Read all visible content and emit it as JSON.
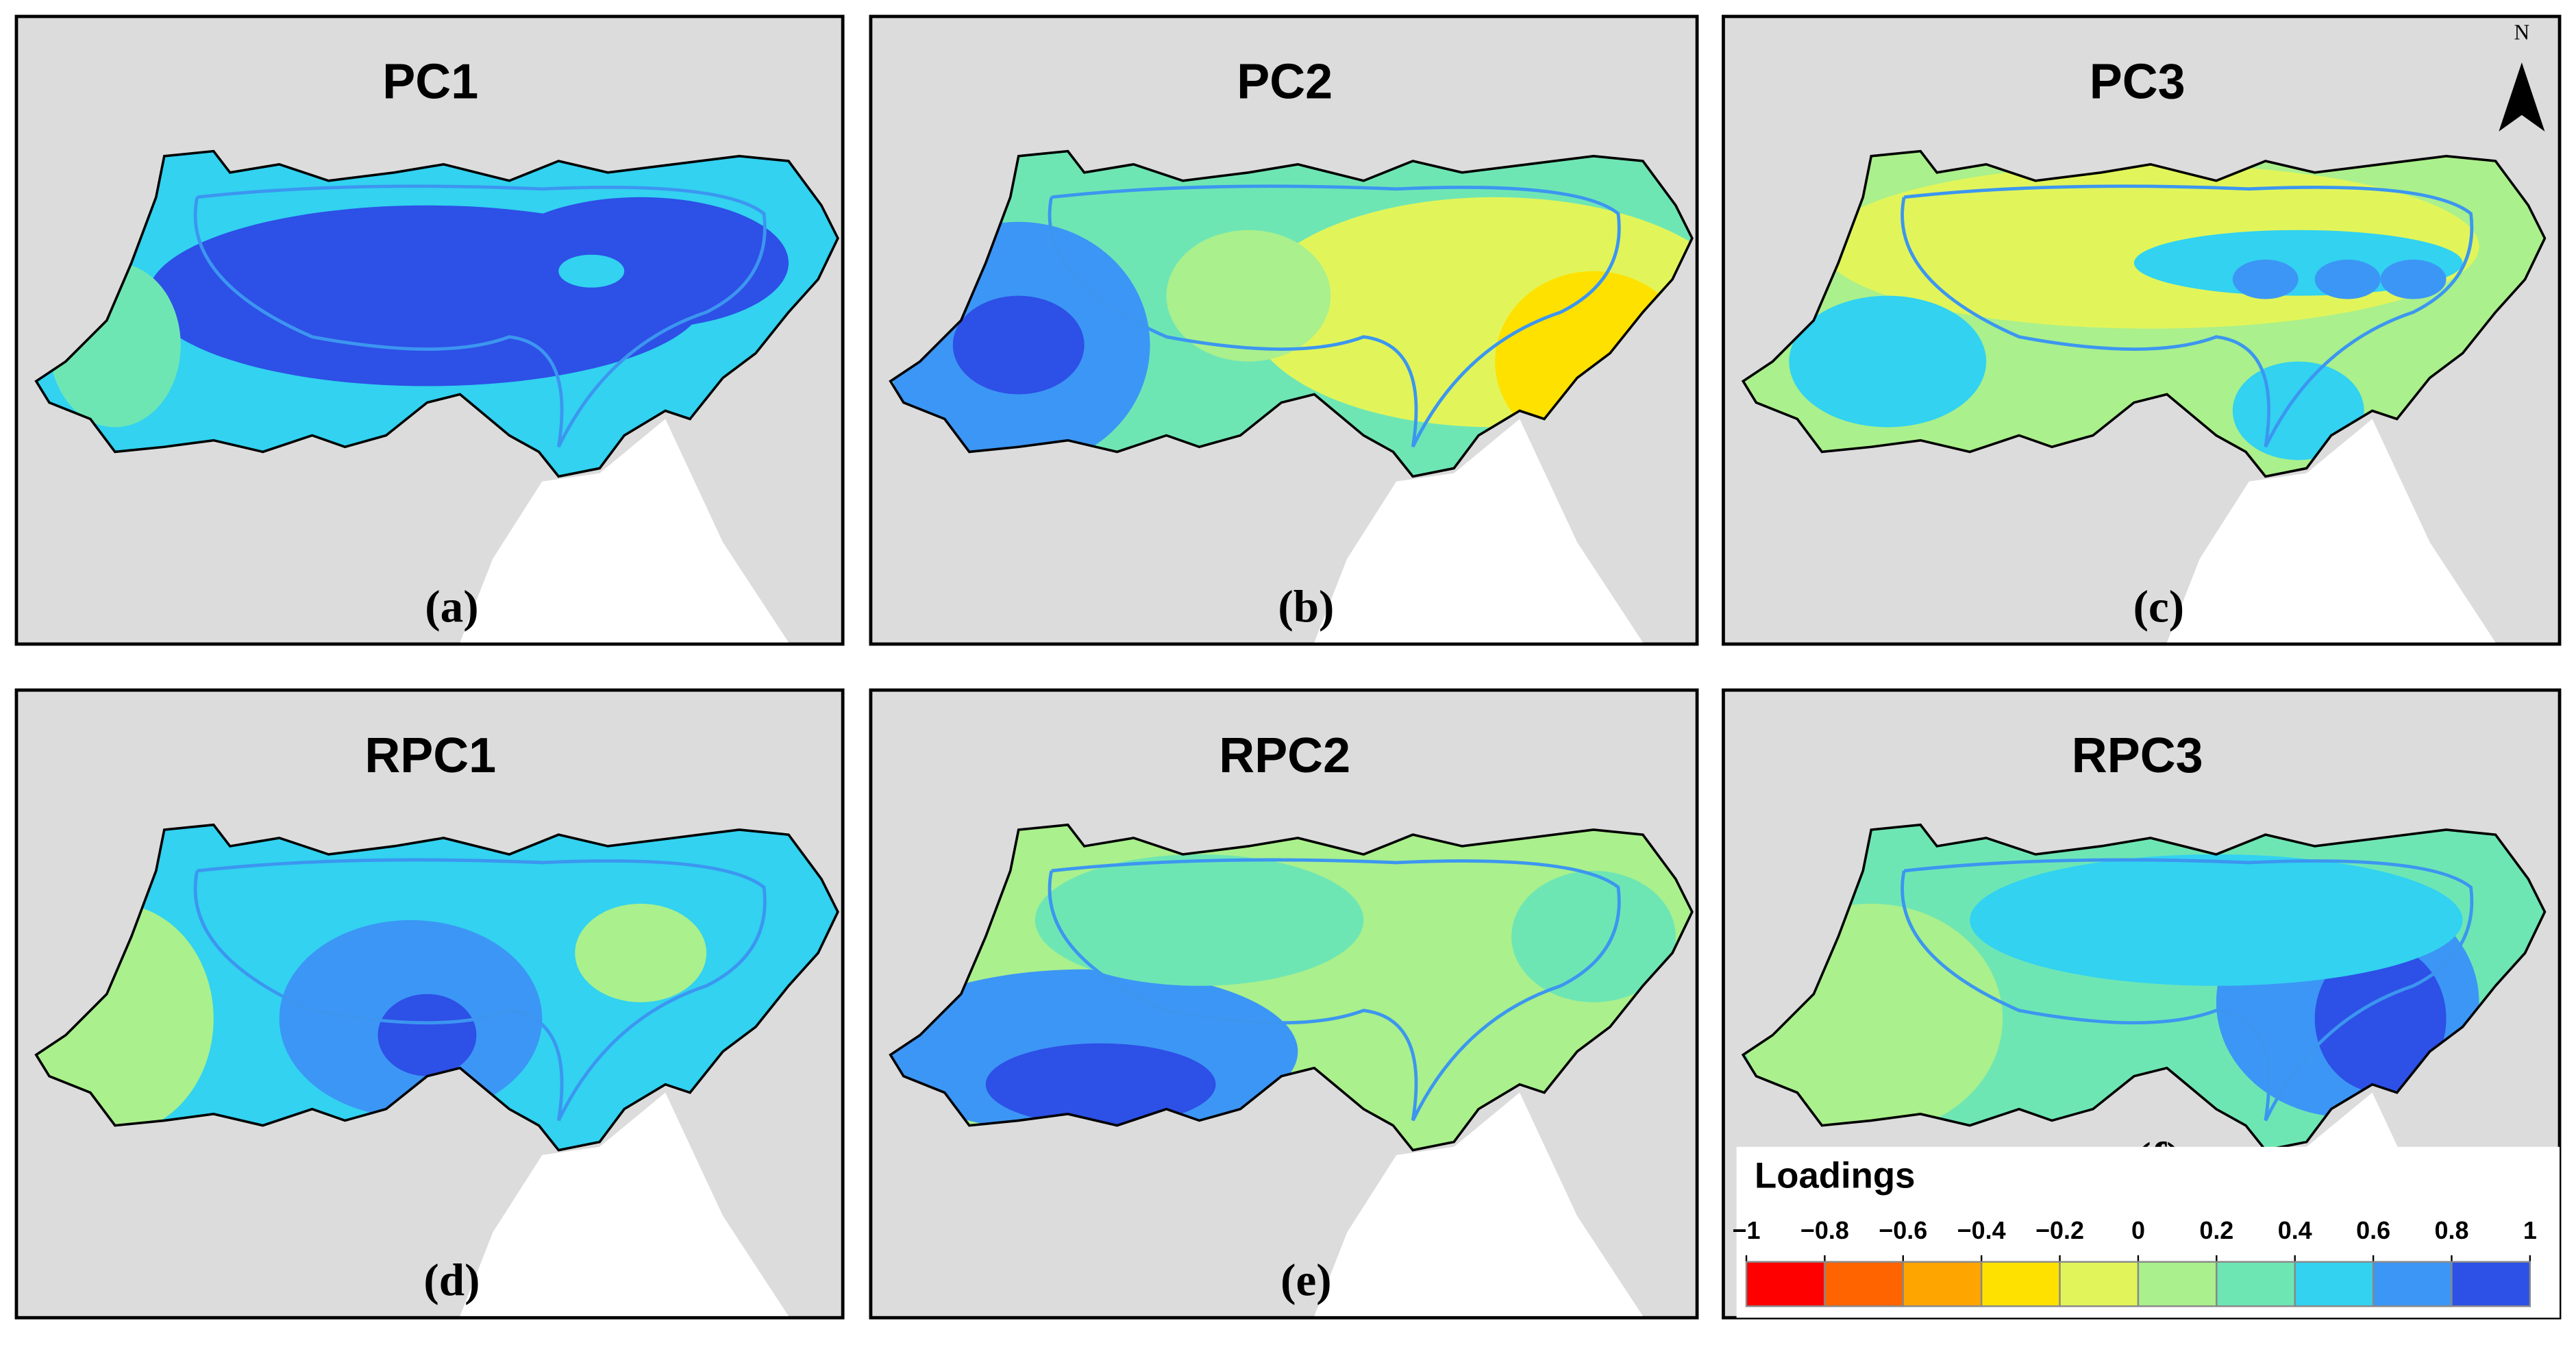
{
  "panels": [
    {
      "title": "PC1",
      "label": "(a)"
    },
    {
      "title": "PC2",
      "label": "(b)"
    },
    {
      "title": "PC3",
      "label": "(c)"
    },
    {
      "title": "RPC1",
      "label": "(d)"
    },
    {
      "title": "RPC2",
      "label": "(e)"
    },
    {
      "title": "RPC3",
      "label": "(f)"
    }
  ],
  "north": "N",
  "legend": {
    "title": "Loadings",
    "ticks": [
      {
        "value": -1,
        "label": "−1"
      },
      {
        "value": -0.8,
        "label": "−0.8"
      },
      {
        "value": -0.6,
        "label": "−0.6"
      },
      {
        "value": -0.4,
        "label": "−0.4"
      },
      {
        "value": -0.2,
        "label": "−0.2"
      },
      0,
      0.2,
      0.4,
      0.6,
      0.8,
      1
    ],
    "colors": [
      "#ff0000",
      "#ff6400",
      "#ffa500",
      "#ffe100",
      "#e1f55a",
      "#aaf08c",
      "#6ee6b4",
      "#32d2f0",
      "#3c96f5",
      "#2d50e6"
    ]
  }
}
